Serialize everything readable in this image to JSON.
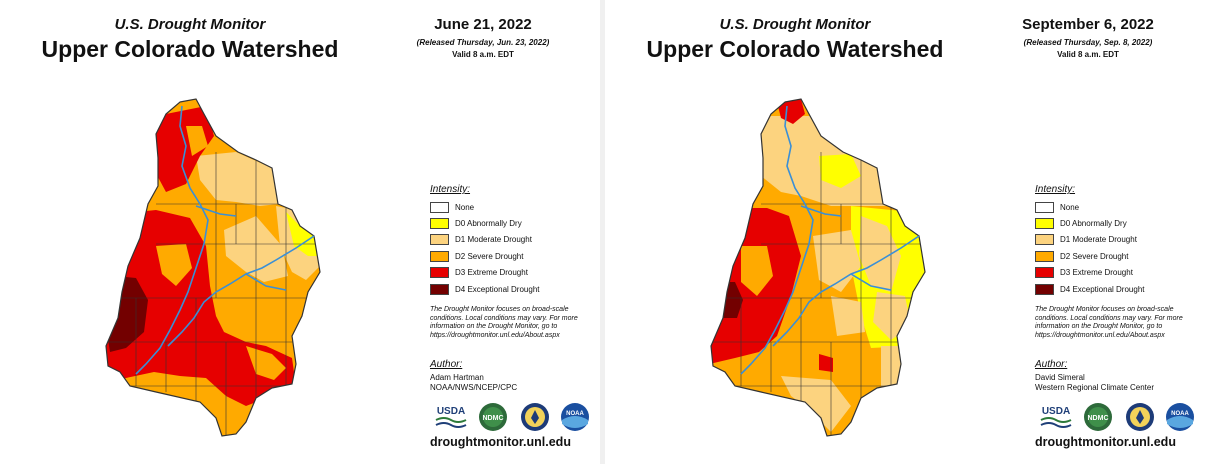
{
  "maps": [
    {
      "brand": "U.S. Drought Monitor",
      "region": "Upper Colorado Watershed",
      "date": "June 21, 2022",
      "released": "(Released Thursday, Jun. 23, 2022)",
      "valid": "Valid 8 a.m. EDT",
      "author": {
        "title": "Author:",
        "lines": [
          "Adam Hartman",
          "NOAA/NWS/NCEP/CPC"
        ]
      },
      "website": "droughtmonitor.unl.edu"
    },
    {
      "brand": "U.S. Drought Monitor",
      "region": "Upper Colorado Watershed",
      "date": "September 6, 2022",
      "released": "(Released Thursday, Sep. 8, 2022)",
      "valid": "Valid 8 a.m. EDT",
      "author": {
        "title": "Author:",
        "lines": [
          "David Simeral",
          "Western Regional Climate Center"
        ]
      },
      "website": "droughtmonitor.unl.edu"
    }
  ],
  "legend": {
    "title": "Intensity:",
    "items": [
      {
        "label": "None",
        "color": "#ffffff"
      },
      {
        "label": "D0 Abnormally Dry",
        "color": "#ffff00"
      },
      {
        "label": "D1 Moderate Drought",
        "color": "#fcd37f"
      },
      {
        "label": "D2 Severe Drought",
        "color": "#ffaa00"
      },
      {
        "label": "D3 Extreme Drought",
        "color": "#e60000"
      },
      {
        "label": "D4 Exceptional Drought",
        "color": "#730000"
      }
    ]
  },
  "note": "The Drought Monitor focuses on broad-scale conditions. Local conditions may vary. For more information on the Drought Monitor, go to https://droughtmonitor.unl.edu/About.aspx",
  "logos": [
    {
      "name": "usda-logo",
      "text": "USDA"
    },
    {
      "name": "ndmc-logo",
      "text": "NDMC"
    },
    {
      "name": "doc-seal-logo",
      "text": ""
    },
    {
      "name": "noaa-logo",
      "text": "NOAA"
    }
  ],
  "colors": {
    "river": "#3a8fd6",
    "boundary": "#333333"
  }
}
